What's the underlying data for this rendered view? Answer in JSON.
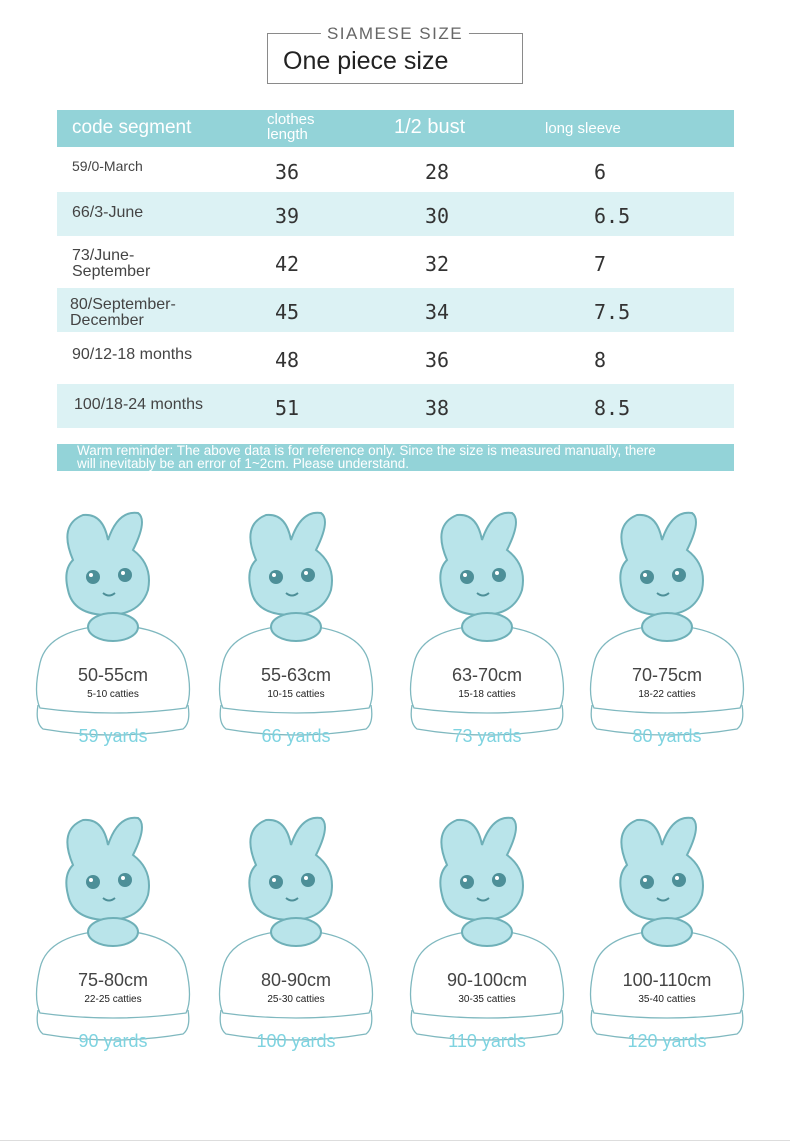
{
  "title": {
    "label": "SIAMESE SIZE",
    "main": "One piece size"
  },
  "table": {
    "headers": {
      "segment": "code segment",
      "length": "clothes length",
      "bust": "1/2 bust",
      "sleeve": "long sleeve"
    },
    "rows": [
      {
        "segment": "59/0-March",
        "length": "36",
        "bust": "28",
        "sleeve": "6"
      },
      {
        "segment": "66/3-June",
        "length": "39",
        "bust": "30",
        "sleeve": "6.5"
      },
      {
        "segment": "73/June-September",
        "length": "42",
        "bust": "32",
        "sleeve": "7"
      },
      {
        "segment": "80/September-December",
        "length": "45",
        "bust": "34",
        "sleeve": "7.5"
      },
      {
        "segment": "90/12-18 months",
        "length": "48",
        "bust": "36",
        "sleeve": "8"
      },
      {
        "segment": "100/18-24 months",
        "length": "51",
        "bust": "38",
        "sleeve": "8.5"
      }
    ]
  },
  "reminder": {
    "line1": "Warm reminder: The above data is for reference only. Since the size is measured manually, there",
    "line2": "will inevitably be an error of 1~2cm. Please understand."
  },
  "sizes": [
    {
      "height": "50-55cm",
      "weight": "5-10 catties",
      "yards": "59 yards"
    },
    {
      "height": "55-63cm",
      "weight": "10-15 catties",
      "yards": "66 yards"
    },
    {
      "height": "63-70cm",
      "weight": "15-18 catties",
      "yards": "73 yards"
    },
    {
      "height": "70-75cm",
      "weight": "18-22 catties",
      "yards": "80 yards"
    },
    {
      "height": "75-80cm",
      "weight": "22-25 catties",
      "yards": "90 yards"
    },
    {
      "height": "80-90cm",
      "weight": "25-30 catties",
      "yards": "100 yards"
    },
    {
      "height": "90-100cm",
      "weight": "30-35 catties",
      "yards": "110 yards"
    },
    {
      "height": "100-110cm",
      "weight": "35-40 catties",
      "yards": "120 yards"
    }
  ],
  "colors": {
    "accent": "#93d3d8",
    "row_alt": "#dcf2f4",
    "yards": "#7ed3e0",
    "mascot": "#b9e4ea"
  }
}
